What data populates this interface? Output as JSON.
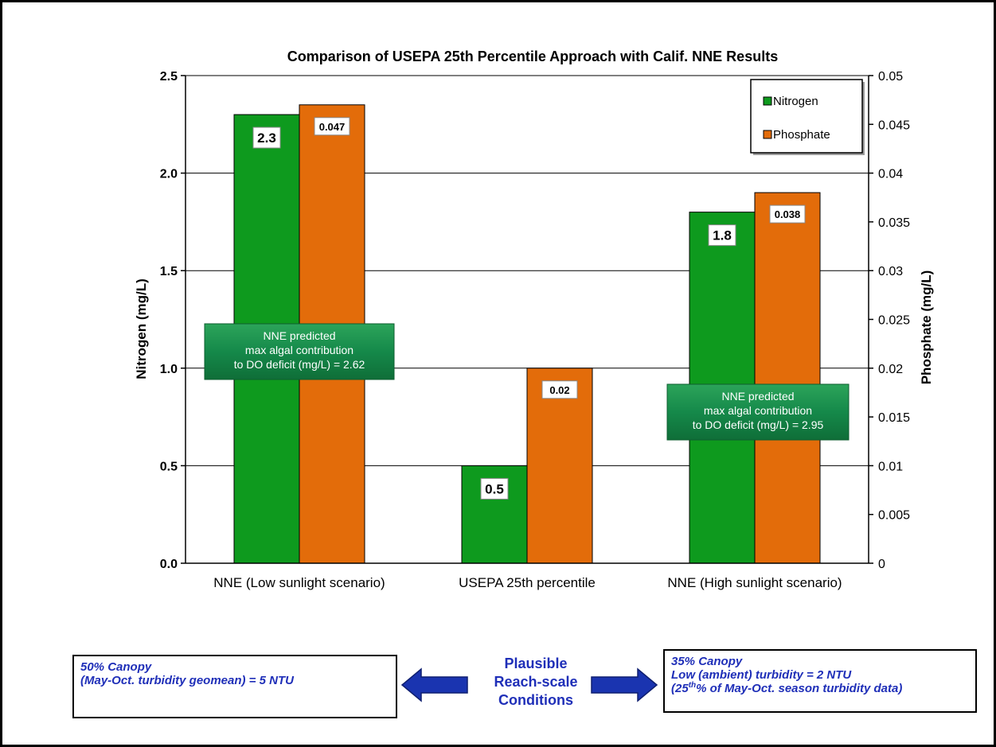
{
  "chart_data": {
    "type": "bar",
    "title": "Comparison  of USEPA 25th Percentile Approach  with Calif. NNE Results",
    "categories": [
      "NNE (Low sunlight scenario)",
      "USEPA 25th percentile",
      "NNE (High sunlight scenario)"
    ],
    "series": [
      {
        "name": "Nitrogen",
        "axis": "left",
        "color": "#0e9a1e",
        "values": [
          2.3,
          0.5,
          1.8
        ],
        "labels": [
          "2.3",
          "0.5",
          "1.8"
        ]
      },
      {
        "name": "Phosphate",
        "axis": "right",
        "color": "#e36c0a",
        "values": [
          0.047,
          0.02,
          0.038
        ],
        "labels": [
          "0.047",
          "0.02",
          "0.038"
        ]
      }
    ],
    "ylabel_left": "Nitrogen (mg/L)",
    "ylabel_right": "Phosphate (mg/L)",
    "ylim_left": [
      0,
      2.5
    ],
    "ylim_right": [
      0,
      0.05
    ],
    "yticks_left": [
      "0.0",
      "0.5",
      "1.0",
      "1.5",
      "2.0",
      "2.5"
    ],
    "yticks_right": [
      "0",
      "0.005",
      "0.01",
      "0.015",
      "0.02",
      "0.025",
      "0.03",
      "0.035",
      "0.04",
      "0.045",
      "0.05"
    ],
    "grid": true,
    "legend_position": "top-right",
    "annotations": [
      {
        "lines": [
          "NNE  predicted",
          "max algal contribution",
          "to DO  deficit (mg/L) = 2.62"
        ],
        "category": "NNE (Low sunlight scenario)"
      },
      {
        "lines": [
          "NNE  predicted",
          "max algal contribution",
          "to DO  deficit (mg/L) = 2.95"
        ],
        "category": "NNE (High sunlight scenario)"
      }
    ]
  },
  "conditions": {
    "left_box": {
      "line1": "50% Canopy",
      "line2": "(May-Oct. turbidity geomean) = 5 NTU"
    },
    "center_label": {
      "line1": "Plausible",
      "line2": "Reach-scale",
      "line3": "Conditions"
    },
    "right_box": {
      "line1": "35% Canopy",
      "line2": "Low (ambient) turbidity = 2 NTU",
      "line3_prefix": "(25",
      "line3_sup": "th",
      "line3_suffix": "% of May-Oct. season turbidity data)"
    }
  },
  "colors": {
    "nitrogen": "#0e9a1e",
    "phosphate": "#e36c0a",
    "annotation": "#15894a",
    "arrow": "#1a34b0",
    "text_blue": "#1f2fb8"
  }
}
